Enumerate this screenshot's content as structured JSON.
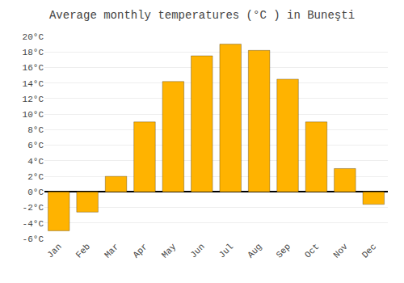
{
  "chart_data": {
    "type": "bar",
    "title": "Average monthly temperatures (°C ) in Buneşti",
    "categories": [
      "Jan",
      "Feb",
      "Mar",
      "Apr",
      "May",
      "Jun",
      "Jul",
      "Aug",
      "Sep",
      "Oct",
      "Nov",
      "Dec"
    ],
    "values": [
      -5.0,
      -2.6,
      2.0,
      9.0,
      14.2,
      17.5,
      19.0,
      18.2,
      14.5,
      9.0,
      3.0,
      -1.6
    ],
    "color": "#FFB300",
    "ylim": [
      -6,
      20
    ],
    "yticks": [
      {
        "value": -6,
        "label": "-6°C"
      },
      {
        "value": -4,
        "label": "-4°C"
      },
      {
        "value": -2,
        "label": "-2°C"
      },
      {
        "value": 0,
        "label": "0°C"
      },
      {
        "value": 2,
        "label": "2°C"
      },
      {
        "value": 4,
        "label": "4°C"
      },
      {
        "value": 6,
        "label": "6°C"
      },
      {
        "value": 8,
        "label": "8°C"
      },
      {
        "value": 10,
        "label": "10°C"
      },
      {
        "value": 12,
        "label": "12°C"
      },
      {
        "value": 14,
        "label": "14°C"
      },
      {
        "value": 16,
        "label": "16°C"
      },
      {
        "value": 18,
        "label": "18°C"
      },
      {
        "value": 20,
        "label": "20°C"
      }
    ],
    "grid": true
  }
}
